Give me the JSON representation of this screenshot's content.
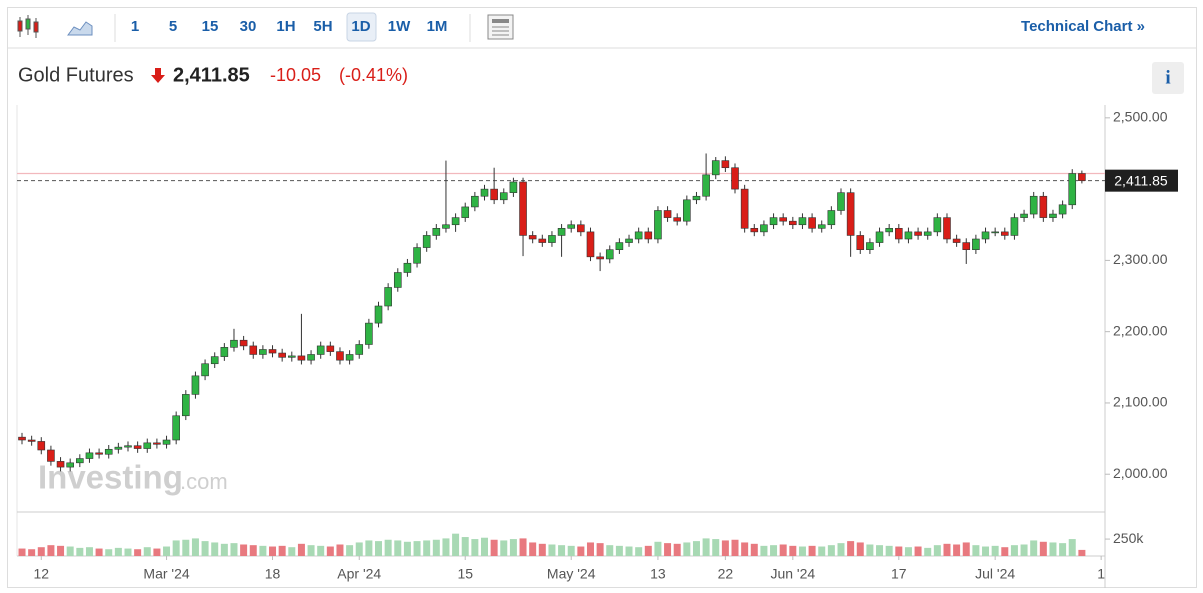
{
  "toolbar": {
    "intervals": [
      "1",
      "5",
      "15",
      "30",
      "1H",
      "5H",
      "1D",
      "1W",
      "1M"
    ],
    "link": "Technical Chart »"
  },
  "quote": {
    "name": "Gold Futures",
    "price": "2,411.85",
    "change": "-10.05",
    "change_pct": "(-0.41%)",
    "info": "i"
  },
  "watermark": {
    "brand": "Investing",
    "suffix": ".com"
  },
  "chart_data": {
    "type": "candlestick",
    "up_color": "#2fb344",
    "down_color": "#d91e18",
    "vol_up_color": "#a8d9b4",
    "vol_down_color": "#e8797f",
    "reference_line": 2421.9,
    "xlim": [
      -0.52,
      112.4
    ],
    "xticks": [
      {
        "value": 2,
        "label": "12"
      },
      {
        "value": 15,
        "label": "Mar '24"
      },
      {
        "value": 26,
        "label": "18"
      },
      {
        "value": 35,
        "label": "Apr '24"
      },
      {
        "value": 46,
        "label": "15"
      },
      {
        "value": 57,
        "label": "May '24"
      },
      {
        "value": 66,
        "label": "13"
      },
      {
        "value": 73,
        "label": "22"
      },
      {
        "value": 80,
        "label": "Jun '24"
      },
      {
        "value": 91,
        "label": "17"
      },
      {
        "value": 101,
        "label": "Jul '24"
      },
      {
        "value": 112,
        "label": "1"
      }
    ],
    "ylim": [
      1947,
      2518
    ],
    "yticks": [
      {
        "value": 2000,
        "label": "2,000.00"
      },
      {
        "value": 2100,
        "label": "2,100.00"
      },
      {
        "value": 2200,
        "label": "2,200.00"
      },
      {
        "value": 2300,
        "label": "2,300.00"
      },
      {
        "value": 2500,
        "label": "2,500.00"
      }
    ],
    "vol_ylim": [
      0,
      650000
    ],
    "vol_yticks": [
      {
        "value": 250000,
        "label": "250k"
      }
    ],
    "open": [
      2052,
      2048,
      2046,
      2034,
      2018,
      2010,
      2016,
      2022,
      2030,
      2028,
      2035,
      2038,
      2040,
      2036,
      2044,
      2042,
      2048,
      2082,
      2112,
      2138,
      2155,
      2165,
      2178,
      2188,
      2180,
      2168,
      2175,
      2170,
      2164,
      2166,
      2160,
      2168,
      2180,
      2172,
      2160,
      2168,
      2182,
      2212,
      2236,
      2262,
      2283,
      2296,
      2318,
      2335,
      2345,
      2350,
      2360,
      2375,
      2390,
      2400,
      2385,
      2395,
      2410,
      2335,
      2330,
      2325,
      2335,
      2345,
      2350,
      2340,
      2305,
      2302,
      2315,
      2325,
      2330,
      2340,
      2330,
      2370,
      2360,
      2355,
      2385,
      2390,
      2420,
      2440,
      2430,
      2400,
      2345,
      2340,
      2350,
      2360,
      2355,
      2350,
      2360,
      2345,
      2350,
      2370,
      2395,
      2335,
      2315,
      2325,
      2340,
      2345,
      2330,
      2340,
      2335,
      2340,
      2360,
      2330,
      2325,
      2315,
      2330,
      2340,
      2340,
      2335,
      2360,
      2365,
      2390,
      2360,
      2365,
      2378,
      2421.9
    ],
    "high": [
      2058,
      2054,
      2052,
      2040,
      2024,
      2022,
      2028,
      2036,
      2036,
      2041,
      2044,
      2046,
      2046,
      2050,
      2050,
      2054,
      2088,
      2118,
      2144,
      2161,
      2171,
      2184,
      2204,
      2194,
      2186,
      2181,
      2181,
      2176,
      2172,
      2225,
      2174,
      2186,
      2186,
      2178,
      2174,
      2188,
      2218,
      2242,
      2268,
      2289,
      2302,
      2324,
      2341,
      2351,
      2440,
      2366,
      2381,
      2396,
      2406,
      2430,
      2401,
      2416,
      2416,
      2341,
      2336,
      2341,
      2351,
      2356,
      2356,
      2346,
      2311,
      2321,
      2331,
      2336,
      2346,
      2346,
      2376,
      2376,
      2366,
      2391,
      2396,
      2450,
      2445,
      2446,
      2436,
      2406,
      2351,
      2356,
      2366,
      2366,
      2361,
      2366,
      2366,
      2356,
      2376,
      2401,
      2401,
      2341,
      2331,
      2346,
      2351,
      2351,
      2346,
      2346,
      2346,
      2366,
      2366,
      2336,
      2331,
      2336,
      2346,
      2346,
      2346,
      2366,
      2371,
      2396,
      2396,
      2371,
      2384,
      2428,
      2426
    ],
    "low": [
      2042,
      2040,
      2028,
      2012,
      2004,
      2004,
      2010,
      2016,
      2022,
      2022,
      2029,
      2032,
      2030,
      2030,
      2036,
      2036,
      2042,
      2076,
      2106,
      2132,
      2149,
      2159,
      2172,
      2174,
      2162,
      2162,
      2164,
      2158,
      2158,
      2154,
      2154,
      2162,
      2166,
      2154,
      2154,
      2162,
      2176,
      2206,
      2230,
      2256,
      2277,
      2290,
      2312,
      2329,
      2339,
      2340,
      2354,
      2369,
      2384,
      2379,
      2379,
      2389,
      2306,
      2324,
      2319,
      2319,
      2305,
      2339,
      2334,
      2299,
      2285,
      2296,
      2309,
      2319,
      2324,
      2324,
      2324,
      2354,
      2349,
      2349,
      2379,
      2384,
      2414,
      2424,
      2394,
      2339,
      2334,
      2334,
      2344,
      2349,
      2344,
      2344,
      2339,
      2339,
      2344,
      2364,
      2305,
      2309,
      2309,
      2319,
      2334,
      2324,
      2324,
      2329,
      2329,
      2334,
      2324,
      2319,
      2295,
      2309,
      2324,
      2334,
      2329,
      2329,
      2354,
      2359,
      2354,
      2354,
      2359,
      2372,
      2408
    ],
    "close": [
      2048,
      2046,
      2034,
      2018,
      2010,
      2016,
      2022,
      2030,
      2028,
      2035,
      2038,
      2040,
      2036,
      2044,
      2042,
      2048,
      2082,
      2112,
      2138,
      2155,
      2165,
      2178,
      2188,
      2180,
      2168,
      2175,
      2170,
      2164,
      2166,
      2160,
      2168,
      2180,
      2172,
      2160,
      2168,
      2182,
      2212,
      2236,
      2262,
      2283,
      2296,
      2318,
      2335,
      2345,
      2350,
      2360,
      2375,
      2390,
      2400,
      2385,
      2395,
      2410,
      2335,
      2330,
      2325,
      2335,
      2345,
      2350,
      2340,
      2305,
      2302,
      2315,
      2325,
      2330,
      2340,
      2330,
      2370,
      2360,
      2355,
      2385,
      2390,
      2420,
      2440,
      2430,
      2400,
      2345,
      2340,
      2350,
      2360,
      2355,
      2350,
      2360,
      2345,
      2350,
      2370,
      2395,
      2335,
      2315,
      2325,
      2340,
      2345,
      2330,
      2340,
      2335,
      2340,
      2360,
      2330,
      2325,
      2315,
      2330,
      2340,
      2340,
      2335,
      2360,
      2365,
      2390,
      2360,
      2365,
      2378,
      2421.9,
      2411.85
    ],
    "volume": [
      110000,
      100000,
      130000,
      160000,
      150000,
      140000,
      120000,
      130000,
      110000,
      100000,
      120000,
      110000,
      100000,
      130000,
      110000,
      140000,
      230000,
      240000,
      260000,
      220000,
      200000,
      180000,
      190000,
      170000,
      160000,
      150000,
      140000,
      150000,
      130000,
      180000,
      160000,
      150000,
      140000,
      170000,
      160000,
      200000,
      230000,
      220000,
      240000,
      230000,
      210000,
      220000,
      230000,
      240000,
      260000,
      330000,
      280000,
      250000,
      270000,
      240000,
      230000,
      250000,
      260000,
      200000,
      180000,
      170000,
      160000,
      150000,
      140000,
      200000,
      190000,
      160000,
      150000,
      140000,
      130000,
      150000,
      210000,
      190000,
      180000,
      200000,
      220000,
      260000,
      250000,
      230000,
      240000,
      200000,
      180000,
      150000,
      160000,
      170000,
      150000,
      140000,
      150000,
      140000,
      160000,
      190000,
      220000,
      200000,
      170000,
      160000,
      150000,
      140000,
      130000,
      140000,
      120000,
      160000,
      180000,
      170000,
      200000,
      160000,
      140000,
      150000,
      130000,
      160000,
      170000,
      230000,
      210000,
      200000,
      190000,
      250000,
      90000
    ]
  }
}
